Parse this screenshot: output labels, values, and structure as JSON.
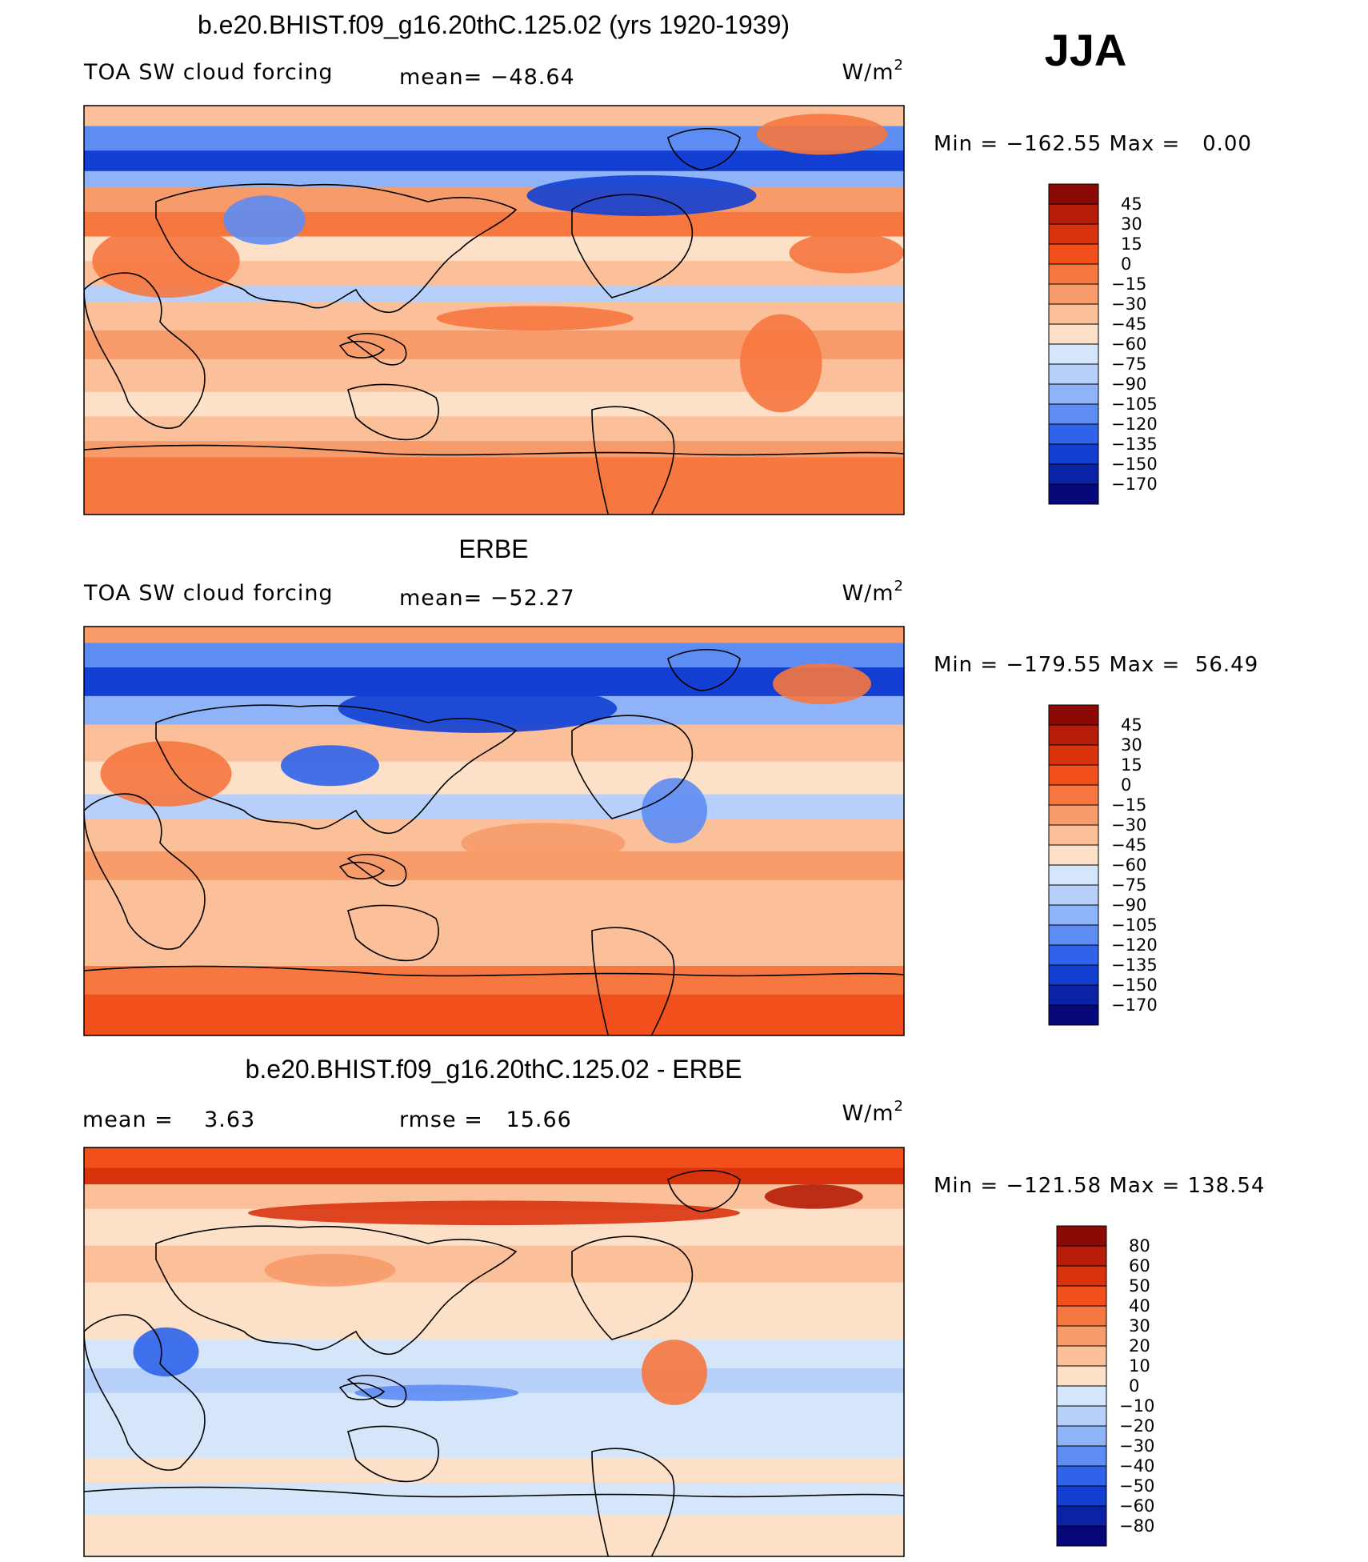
{
  "season": "JJA",
  "colors": {
    "diverging_12": [
      "#08087a",
      "#0c1fb0",
      "#1435d8",
      "#2a57ee",
      "#4c82f5",
      "#7ea8f7",
      "#a6c6f8",
      "#cfe2f8",
      "#fff0e0",
      "#fcc8a8",
      "#fca47c",
      "#f98050",
      "#f55a28",
      "#dc3410",
      "#b01c08",
      "#7a0c04"
    ],
    "land": "none",
    "coast": "#000000"
  },
  "panels": [
    {
      "id": "model",
      "title": "b.e20.BHIST.f09_g16.20thC.125.02 (yrs 1920-1939)",
      "left_label": "TOA SW cloud forcing",
      "center_label": "mean= −48.64",
      "units": "W/m",
      "units_sup": "2",
      "minmax": "Min = −162.55 Max =   0.00",
      "levels": [
        "45",
        "30",
        "15",
        "0",
        "−15",
        "−30",
        "−45",
        "−60",
        "−75",
        "−90",
        "−105",
        "−120",
        "−135",
        "−150",
        "−170"
      ],
      "cbar_colors": [
        "#8b0a05",
        "#b51d08",
        "#d9330e",
        "#f1501c",
        "#f6773f",
        "#f79b6b",
        "#fbbf9a",
        "#fde0c8",
        "#d6e6fa",
        "#b7d0fa",
        "#8fb3f8",
        "#5d8cf3",
        "#2f63ea",
        "#123fd2",
        "#0a22a6",
        "#06087a"
      ]
    },
    {
      "id": "obs",
      "title": "ERBE",
      "left_label": "TOA SW cloud forcing",
      "center_label": "mean= −52.27",
      "units": "W/m",
      "units_sup": "2",
      "minmax": "Min = −179.55 Max =  56.49",
      "levels": [
        "45",
        "30",
        "15",
        "0",
        "−15",
        "−30",
        "−45",
        "−60",
        "−75",
        "−90",
        "−105",
        "−120",
        "−135",
        "−150",
        "−170"
      ],
      "cbar_colors": [
        "#8b0a05",
        "#b51d08",
        "#d9330e",
        "#f1501c",
        "#f6773f",
        "#f79b6b",
        "#fbbf9a",
        "#fde0c8",
        "#d6e6fa",
        "#b7d0fa",
        "#8fb3f8",
        "#5d8cf3",
        "#2f63ea",
        "#123fd2",
        "#0a22a6",
        "#06087a"
      ]
    },
    {
      "id": "diff",
      "title": "b.e20.BHIST.f09_g16.20thC.125.02 - ERBE",
      "left_label": "mean =    3.63",
      "center_label": "rmse =   15.66",
      "units": "W/m",
      "units_sup": "2",
      "minmax": "Min = −121.58 Max = 138.54",
      "levels": [
        "80",
        "60",
        "50",
        "40",
        "30",
        "20",
        "10",
        "0",
        "−10",
        "−20",
        "−30",
        "−40",
        "−50",
        "−60",
        "−80"
      ],
      "cbar_colors": [
        "#8b0a05",
        "#b51d08",
        "#d9330e",
        "#f1501c",
        "#f6773f",
        "#f79b6b",
        "#fbbf9a",
        "#fde0c8",
        "#d6e6fa",
        "#b7d0fa",
        "#8fb3f8",
        "#5d8cf3",
        "#2f63ea",
        "#123fd2",
        "#0a22a6",
        "#06087a"
      ]
    }
  ]
}
